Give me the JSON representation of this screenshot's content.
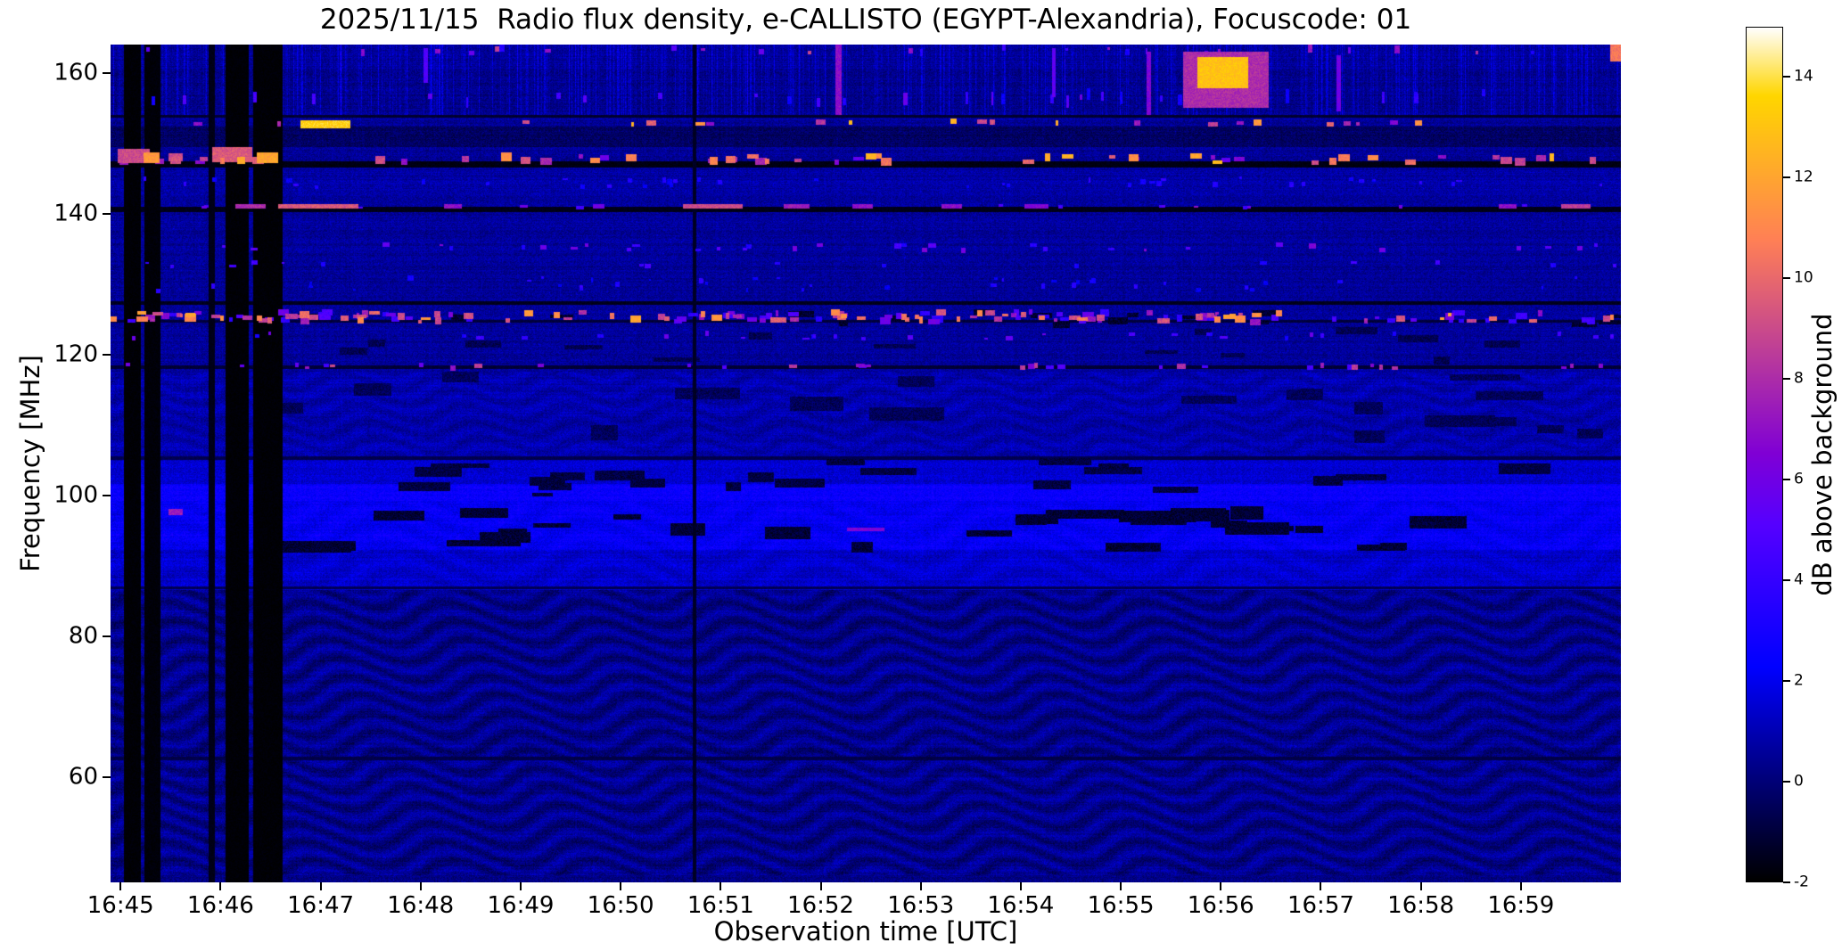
{
  "chart_data": {
    "type": "heatmap",
    "title": "2025/11/15  Radio flux density, e-CALLISTO (EGYPT-Alexandria), Focuscode: 01",
    "xlabel": "Observation time [UTC]",
    "ylabel": "Frequency [MHz]",
    "x_ticks": [
      {
        "label": "16:45",
        "t": 0
      },
      {
        "label": "16:46",
        "t": 1
      },
      {
        "label": "16:47",
        "t": 2
      },
      {
        "label": "16:48",
        "t": 3
      },
      {
        "label": "16:49",
        "t": 4
      },
      {
        "label": "16:50",
        "t": 5
      },
      {
        "label": "16:51",
        "t": 6
      },
      {
        "label": "16:52",
        "t": 7
      },
      {
        "label": "16:53",
        "t": 8
      },
      {
        "label": "16:54",
        "t": 9
      },
      {
        "label": "16:55",
        "t": 10
      },
      {
        "label": "16:56",
        "t": 11
      },
      {
        "label": "16:57",
        "t": 12
      },
      {
        "label": "16:58",
        "t": 13
      },
      {
        "label": "16:59",
        "t": 14
      }
    ],
    "x_range_minutes": [
      -0.1,
      15.0
    ],
    "y_ticks": [
      60,
      80,
      100,
      120,
      140,
      160
    ],
    "y_range_mhz": [
      45,
      164
    ],
    "grid": false,
    "colorbar": {
      "label": "dB above background",
      "ticks": [
        -2,
        0,
        2,
        4,
        6,
        8,
        10,
        12,
        14
      ],
      "range": [
        -2,
        15
      ],
      "colormap": "gnuplot2"
    },
    "features": {
      "noise": {
        "seed": 7,
        "base": 0.55,
        "amp": 1.3
      },
      "bands": [
        {
          "f0": 45,
          "f1": 86.5,
          "boost": -0.25
        },
        {
          "f0": 86.5,
          "f1": 92.2,
          "boost": 0.9
        },
        {
          "f0": 92.2,
          "f1": 99.2,
          "boost": 1.6
        },
        {
          "f0": 99.2,
          "f1": 101.6,
          "boost": 1.9
        },
        {
          "f0": 101.6,
          "f1": 105.2,
          "boost": 0.9
        },
        {
          "f0": 105.2,
          "f1": 117.6,
          "boost": 0.35
        },
        {
          "f0": 142.2,
          "f1": 146.2,
          "boost": 0.2
        },
        {
          "f0": 149.5,
          "f1": 152.3,
          "boost": -0.9
        },
        {
          "f0": 154,
          "f1": 164,
          "boost": -0.3
        },
        {
          "f0": 160.5,
          "f1": 164,
          "boost": 0.25
        }
      ],
      "waves": [
        {
          "f0": 46,
          "f1": 86.5,
          "amp": 0.55,
          "kf": 2.4,
          "au": 4.0,
          "ku": 4.5,
          "fc": 0.18
        },
        {
          "f0": 105.5,
          "f1": 117.5,
          "amp": 0.3,
          "kf": 2.8,
          "au": 3.0,
          "ku": 6.0,
          "fc": 0.25
        },
        {
          "f0": 87,
          "f1": 99,
          "amp": 0.25,
          "kf": 1.8,
          "au": 5.0,
          "ku": 3.0,
          "fc": 0.1
        }
      ],
      "dark_lines": [
        {
          "f": 147.0,
          "w": 0.9,
          "v": -1.7
        },
        {
          "f": 140.6,
          "w": 0.7,
          "v": -1.6
        },
        {
          "f": 127.3,
          "w": 0.6,
          "v": -1.5
        },
        {
          "f": 124.7,
          "w": 0.4,
          "v": -1.0
        },
        {
          "f": 118.2,
          "w": 0.5,
          "v": -1.1
        },
        {
          "f": 105.3,
          "w": 0.5,
          "v": -0.7
        },
        {
          "f": 86.8,
          "w": 0.4,
          "v": -0.6
        },
        {
          "f": 62.6,
          "w": 0.5,
          "v": -0.8
        },
        {
          "f": 153.8,
          "w": 0.35,
          "v": -1.2
        }
      ],
      "top_streaks": {
        "f0": 154,
        "amp": 2.2
      },
      "vertical_bars": [
        {
          "t0": 0.03,
          "t1": 0.2,
          "v": -1.9
        },
        {
          "t0": 0.24,
          "t1": 0.4,
          "v": -1.85
        },
        {
          "t0": 0.88,
          "t1": 0.94,
          "v": -1.6
        },
        {
          "t0": 1.05,
          "t1": 1.28,
          "v": -1.9
        },
        {
          "t0": 1.33,
          "t1": 1.62,
          "v": -1.9
        },
        {
          "t0": 5.72,
          "t1": 5.76,
          "v": -1.4
        }
      ],
      "dark_blob_regions": [
        {
          "f0": 92.5,
          "f1": 97.5,
          "t0": 1.8,
          "t1": 15.0,
          "count": 30,
          "v": -1.1,
          "wmin": 0.15,
          "wmax": 0.8,
          "hmin": 0.6,
          "hmax": 1.8
        },
        {
          "f0": 100.0,
          "f1": 104.8,
          "t0": 2.0,
          "t1": 15.0,
          "count": 22,
          "v": -0.9,
          "wmin": 0.12,
          "wmax": 0.6,
          "hmin": 0.5,
          "hmax": 1.5
        },
        {
          "f0": 108,
          "f1": 117,
          "t0": 0,
          "t1": 15,
          "count": 20,
          "v": -0.5,
          "wmin": 0.2,
          "wmax": 0.8,
          "hmin": 0.8,
          "hmax": 2.2
        },
        {
          "f0": 119,
          "f1": 124,
          "t0": 0,
          "t1": 15,
          "count": 14,
          "v": -0.6,
          "wmin": 0.15,
          "wmax": 0.5,
          "hmin": 0.5,
          "hmax": 1.2
        },
        {
          "f0": 124,
          "f1": 126.5,
          "t0": 0,
          "t1": 15,
          "count": 18,
          "v": -1.2,
          "wmin": 0.08,
          "wmax": 0.3,
          "hmin": 0.4,
          "hmax": 1.0
        }
      ],
      "speckle_rows": [
        {
          "f": 147.7,
          "jitter": 0.9,
          "count": 55,
          "vmin": 5,
          "vmax": 13,
          "wmin": 0.04,
          "wmax": 0.12,
          "hmin": 0.5,
          "hmax": 1.2
        },
        {
          "f": 152.9,
          "jitter": 0.5,
          "count": 22,
          "vmin": 6,
          "vmax": 13,
          "wmin": 0.03,
          "wmax": 0.1,
          "hmin": 0.4,
          "hmax": 0.9
        },
        {
          "f": 125.3,
          "jitter": 1.4,
          "count": 170,
          "vmin": 3.5,
          "vmax": 12,
          "wmin": 0.03,
          "wmax": 0.12,
          "hmin": 0.4,
          "hmax": 1.0
        },
        {
          "f": 122.6,
          "jitter": 0.8,
          "count": 30,
          "vmin": 3,
          "vmax": 6,
          "wmin": 0.03,
          "wmax": 0.08,
          "hmin": 0.3,
          "hmax": 0.7
        },
        {
          "f": 118.3,
          "jitter": 0.5,
          "count": 34,
          "vmin": 4,
          "vmax": 9,
          "wmin": 0.03,
          "wmax": 0.09,
          "hmin": 0.4,
          "hmax": 0.8
        },
        {
          "f": 135.2,
          "jitter": 0.9,
          "count": 34,
          "vmin": 3,
          "vmax": 6.5,
          "wmin": 0.03,
          "wmax": 0.08,
          "hmin": 0.3,
          "hmax": 0.8
        },
        {
          "f": 132.8,
          "jitter": 0.6,
          "count": 16,
          "vmin": 3,
          "vmax": 5,
          "wmin": 0.03,
          "wmax": 0.07,
          "hmin": 0.3,
          "hmax": 0.6
        },
        {
          "f": 141.0,
          "jitter": 0.3,
          "count": 14,
          "vmin": 4,
          "vmax": 7,
          "wmin": 0.03,
          "wmax": 0.08,
          "hmin": 0.3,
          "hmax": 0.6
        },
        {
          "f": 163.2,
          "jitter": 0.8,
          "count": 26,
          "vmin": 3,
          "vmax": 9,
          "wmin": 0.02,
          "wmax": 0.06,
          "hmin": 0.4,
          "hmax": 1.2
        },
        {
          "f": 156.5,
          "jitter": 1.5,
          "count": 30,
          "vmin": 2.5,
          "vmax": 6,
          "wmin": 0.02,
          "wmax": 0.05,
          "hmin": 0.5,
          "hmax": 2.0
        },
        {
          "f": 144.5,
          "jitter": 1.5,
          "count": 40,
          "vmin": 2,
          "vmax": 4,
          "wmin": 0.02,
          "wmax": 0.06,
          "hmin": 0.3,
          "hmax": 0.8
        },
        {
          "f": 130.0,
          "jitter": 2.0,
          "count": 40,
          "vmin": 2,
          "vmax": 4,
          "wmin": 0.02,
          "wmax": 0.06,
          "hmin": 0.3,
          "hmax": 0.8
        }
      ],
      "blobs": [
        {
          "t": 2.05,
          "f": 152.7,
          "w": 0.5,
          "h": 1.1,
          "v": 13.5
        },
        {
          "t": 0.13,
          "f": 148.2,
          "w": 0.32,
          "h": 2.0,
          "v": 9
        },
        {
          "t": 0.31,
          "f": 147.9,
          "w": 0.16,
          "h": 1.5,
          "v": 11.5
        },
        {
          "t": 0.55,
          "f": 148.0,
          "w": 0.14,
          "h": 1.2,
          "v": 9
        },
        {
          "t": 1.12,
          "f": 148.4,
          "w": 0.4,
          "h": 2.2,
          "v": 9.5
        },
        {
          "t": 1.47,
          "f": 147.9,
          "w": 0.22,
          "h": 1.6,
          "v": 12
        },
        {
          "t": 1.3,
          "f": 141.0,
          "w": 0.3,
          "h": 0.7,
          "v": 8
        },
        {
          "t": 1.98,
          "f": 141.0,
          "w": 0.8,
          "h": 0.7,
          "v": 9.5
        },
        {
          "t": 3.32,
          "f": 141.0,
          "w": 0.18,
          "h": 0.6,
          "v": 7
        },
        {
          "t": 4.78,
          "f": 141.0,
          "w": 0.12,
          "h": 0.6,
          "v": 6
        },
        {
          "t": 5.92,
          "f": 141.0,
          "w": 0.6,
          "h": 0.7,
          "v": 9
        },
        {
          "t": 6.76,
          "f": 141.0,
          "w": 0.26,
          "h": 0.6,
          "v": 7.5
        },
        {
          "t": 7.42,
          "f": 141.0,
          "w": 0.2,
          "h": 0.6,
          "v": 7
        },
        {
          "t": 8.31,
          "f": 141.0,
          "w": 0.2,
          "h": 0.6,
          "v": 7
        },
        {
          "t": 9.16,
          "f": 141.0,
          "w": 0.24,
          "h": 0.6,
          "v": 6.5
        },
        {
          "t": 13.87,
          "f": 141.0,
          "w": 0.18,
          "h": 0.6,
          "v": 7
        },
        {
          "t": 14.55,
          "f": 141.0,
          "w": 0.3,
          "h": 0.6,
          "v": 8.5
        },
        {
          "t": 0.55,
          "f": 97.6,
          "w": 0.15,
          "h": 0.8,
          "v": 7.5
        },
        {
          "t": 7.45,
          "f": 95.1,
          "w": 0.38,
          "h": 0.5,
          "v": 6.5
        },
        {
          "t": 7.18,
          "f": 159.0,
          "w": 0.06,
          "h": 10,
          "v": 7
        },
        {
          "t": 10.28,
          "f": 158.5,
          "w": 0.05,
          "h": 9,
          "v": 6.5
        },
        {
          "t": 11.02,
          "f": 160.0,
          "w": 0.5,
          "h": 4.5,
          "v": 13
        },
        {
          "t": 11.05,
          "f": 159.0,
          "w": 0.85,
          "h": 8,
          "v": 8
        },
        {
          "t": 12.18,
          "f": 158.5,
          "w": 0.05,
          "h": 8,
          "v": 6
        },
        {
          "t": 9.33,
          "f": 160.0,
          "w": 0.04,
          "h": 7,
          "v": 5.5
        },
        {
          "t": 3.05,
          "f": 161.0,
          "w": 0.04,
          "h": 5,
          "v": 5
        },
        {
          "t": 14.95,
          "f": 162.9,
          "w": 0.12,
          "h": 2.6,
          "v": 10.5
        },
        {
          "t": 5.15,
          "f": 125.0,
          "w": 0.1,
          "h": 1.0,
          "v": 12
        },
        {
          "t": 0.7,
          "f": 125.2,
          "w": 0.12,
          "h": 1.2,
          "v": 11
        }
      ]
    }
  }
}
